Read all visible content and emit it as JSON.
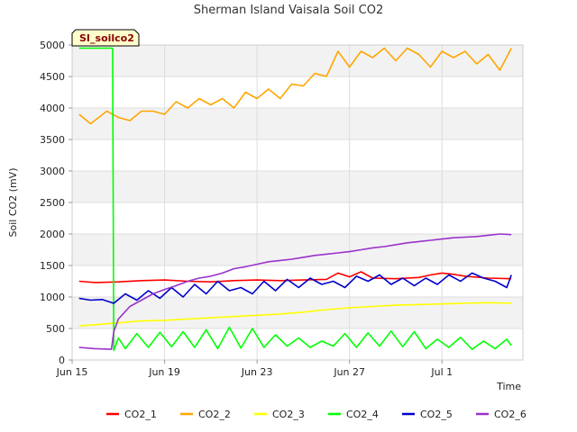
{
  "chart_data": {
    "type": "line",
    "title": "Sherman Island Vaisala Soil CO2",
    "site_badge": "SI_soilco2",
    "xlabel": "Time",
    "ylabel": "Soil CO2 (mV)",
    "xlim": [
      0,
      19.5
    ],
    "ylim": [
      0,
      5000
    ],
    "x_ticks": [
      {
        "x": 0,
        "label": "Jun 15"
      },
      {
        "x": 4,
        "label": "Jun 19"
      },
      {
        "x": 8,
        "label": "Jun 23"
      },
      {
        "x": 12,
        "label": "Jun 27"
      },
      {
        "x": 16,
        "label": "Jul 1"
      }
    ],
    "y_ticks": [
      0,
      500,
      1000,
      1500,
      2000,
      2500,
      3000,
      3500,
      4000,
      4500,
      5000
    ],
    "x_unit_note": "days since Jun 15",
    "grid": true,
    "legend_position": "bottom",
    "series": [
      {
        "name": "CO2_1",
        "color": "#ff0000",
        "x": [
          0.3,
          1,
          2,
          3,
          4,
          5,
          6,
          7,
          8,
          9,
          10,
          11,
          11.5,
          12,
          12.5,
          13,
          14,
          15,
          15.5,
          16,
          16.5,
          17,
          18,
          19
        ],
        "y": [
          1250,
          1230,
          1240,
          1260,
          1270,
          1250,
          1240,
          1260,
          1270,
          1260,
          1270,
          1280,
          1380,
          1320,
          1400,
          1300,
          1290,
          1310,
          1350,
          1380,
          1360,
          1330,
          1300,
          1290
        ]
      },
      {
        "name": "CO2_2",
        "color": "#ffa500",
        "x": [
          0.3,
          0.8,
          1.5,
          2,
          2.5,
          3,
          3.5,
          4,
          4.5,
          5,
          5.5,
          6,
          6.5,
          7,
          7.5,
          8,
          8.5,
          9,
          9.5,
          10,
          10.5,
          11,
          11.5,
          12,
          12.5,
          13,
          13.5,
          14,
          14.5,
          15,
          15.5,
          16,
          16.5,
          17,
          17.5,
          18,
          18.5,
          19
        ],
        "y": [
          3900,
          3750,
          3950,
          3850,
          3800,
          3950,
          3950,
          3900,
          4100,
          4000,
          4150,
          4050,
          4150,
          4000,
          4250,
          4150,
          4300,
          4150,
          4380,
          4350,
          4550,
          4500,
          4900,
          4650,
          4900,
          4800,
          4950,
          4750,
          4950,
          4850,
          4650,
          4900,
          4800,
          4900,
          4700,
          4850,
          4600,
          4950
        ]
      },
      {
        "name": "CO2_3",
        "color": "#ffff00",
        "x": [
          0.3,
          1,
          2,
          3,
          4,
          5,
          6,
          7,
          8,
          9,
          10,
          11,
          12,
          13,
          14,
          15,
          16,
          17,
          18,
          19
        ],
        "y": [
          540,
          560,
          590,
          620,
          630,
          650,
          670,
          690,
          710,
          730,
          760,
          800,
          830,
          850,
          870,
          880,
          890,
          900,
          910,
          900
        ]
      },
      {
        "name": "CO2_4",
        "color": "#00ff00",
        "x": [
          0.3,
          1.75,
          1.8,
          2.0,
          2.3,
          2.8,
          3.3,
          3.8,
          4.3,
          4.8,
          5.3,
          5.8,
          6.3,
          6.8,
          7.3,
          7.8,
          8.3,
          8.8,
          9.3,
          9.8,
          10.3,
          10.8,
          11.3,
          11.8,
          12.3,
          12.8,
          13.3,
          13.8,
          14.3,
          14.8,
          15.3,
          15.8,
          16.3,
          16.8,
          17.3,
          17.8,
          18.3,
          18.8,
          19
        ],
        "y": [
          4950,
          4950,
          150,
          350,
          180,
          420,
          200,
          440,
          210,
          450,
          200,
          480,
          180,
          520,
          190,
          500,
          200,
          400,
          220,
          350,
          200,
          300,
          220,
          420,
          200,
          430,
          220,
          460,
          210,
          450,
          180,
          330,
          200,
          360,
          170,
          300,
          180,
          330,
          230
        ]
      },
      {
        "name": "CO2_5",
        "color": "#0000cc",
        "x": [
          0.3,
          0.8,
          1.3,
          1.8,
          2.3,
          2.8,
          3.3,
          3.8,
          4.3,
          4.8,
          5.3,
          5.8,
          6.3,
          6.8,
          7.3,
          7.8,
          8.3,
          8.8,
          9.3,
          9.8,
          10.3,
          10.8,
          11.3,
          11.8,
          12.3,
          12.8,
          13.3,
          13.8,
          14.3,
          14.8,
          15.3,
          15.8,
          16.3,
          16.8,
          17.3,
          17.8,
          18.3,
          18.8,
          19
        ],
        "y": [
          980,
          950,
          960,
          900,
          1050,
          950,
          1100,
          980,
          1150,
          1000,
          1200,
          1050,
          1250,
          1100,
          1150,
          1050,
          1250,
          1100,
          1280,
          1150,
          1300,
          1200,
          1250,
          1150,
          1330,
          1250,
          1350,
          1200,
          1300,
          1180,
          1300,
          1200,
          1350,
          1250,
          1380,
          1300,
          1250,
          1150,
          1350
        ]
      },
      {
        "name": "CO2_6",
        "color": "#9932cc",
        "x": [
          0.3,
          1,
          1.7,
          1.8,
          2,
          2.5,
          3,
          3.5,
          4,
          4.5,
          5,
          5.5,
          6,
          6.5,
          7,
          7.5,
          8,
          8.5,
          9,
          9.5,
          10,
          10.5,
          11,
          11.5,
          12,
          12.5,
          13,
          13.5,
          14,
          14.5,
          15,
          15.5,
          16,
          16.5,
          17,
          17.5,
          18,
          18.5,
          19
        ],
        "y": [
          200,
          180,
          170,
          450,
          650,
          850,
          950,
          1050,
          1120,
          1180,
          1250,
          1300,
          1330,
          1380,
          1450,
          1480,
          1520,
          1560,
          1580,
          1600,
          1630,
          1660,
          1680,
          1700,
          1720,
          1750,
          1780,
          1800,
          1830,
          1860,
          1880,
          1900,
          1920,
          1940,
          1950,
          1960,
          1980,
          2000,
          1990
        ]
      }
    ]
  }
}
